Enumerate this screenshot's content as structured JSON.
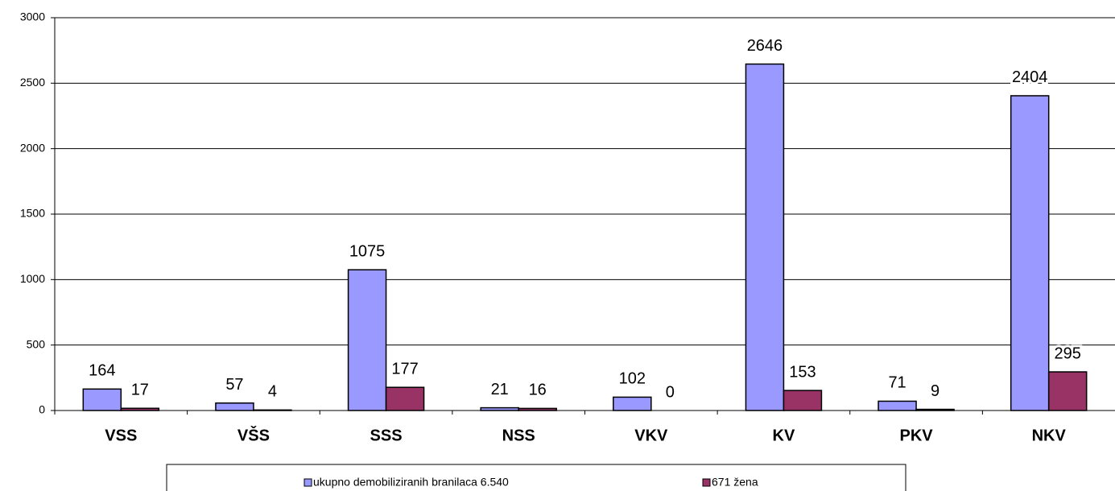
{
  "chart_data": {
    "type": "bar",
    "categories": [
      "VSS",
      "VŠS",
      "SSS",
      "NSS",
      "VKV",
      "KV",
      "PKV",
      "NKV"
    ],
    "series": [
      {
        "name": "ukupno demobiliziranih branilaca 6.540",
        "color": "#9999ff",
        "values": [
          164,
          57,
          1075,
          21,
          102,
          2646,
          71,
          2404
        ]
      },
      {
        "name": "671 žena",
        "color": "#993366",
        "values": [
          17,
          4,
          177,
          16,
          0,
          153,
          9,
          295
        ]
      }
    ],
    "ylim": [
      0,
      3000
    ],
    "yticks": [
      0,
      500,
      1000,
      1500,
      2000,
      2500,
      3000
    ],
    "grid": true,
    "legend": "bottom"
  }
}
